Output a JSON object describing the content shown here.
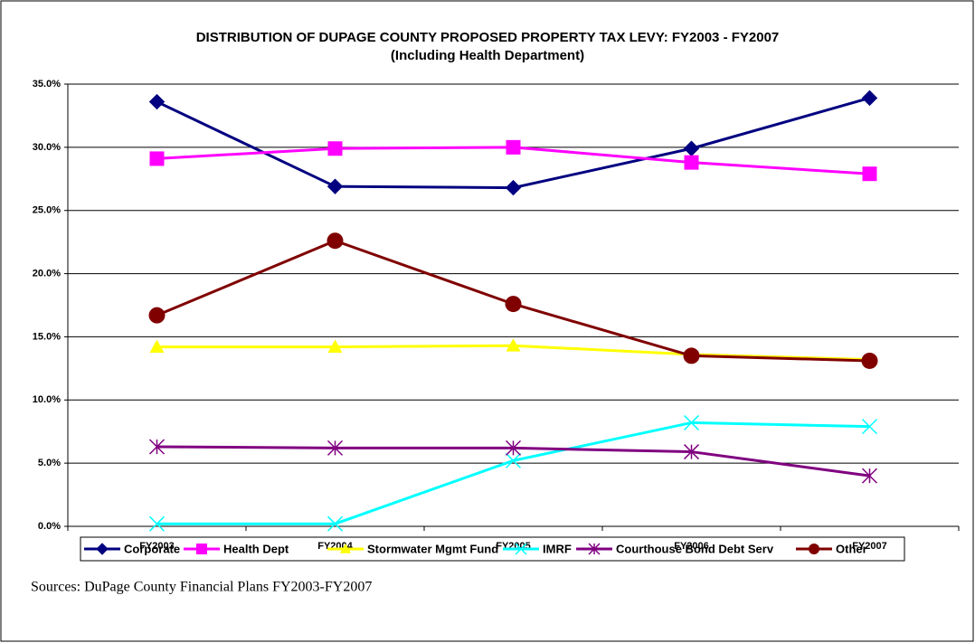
{
  "chart_data": {
    "type": "line",
    "title": "DISTRIBUTION OF DUPAGE COUNTY PROPOSED PROPERTY TAX LEVY: FY2003 - FY2007",
    "subtitle": "(Including Health Department)",
    "categories": [
      "FY2003",
      "FY2004",
      "FY2005",
      "FY2006",
      "FY2007"
    ],
    "series": [
      {
        "name": "Corporate",
        "color": "#000080",
        "marker": "diamond",
        "values": [
          33.6,
          26.9,
          26.8,
          29.9,
          33.9
        ]
      },
      {
        "name": "Health Dept",
        "color": "#ff00ff",
        "marker": "square",
        "values": [
          29.1,
          29.9,
          30.0,
          28.8,
          27.9
        ]
      },
      {
        "name": "Stormwater Mgmt Fund",
        "color": "#ffff00",
        "marker": "triangle",
        "values": [
          14.2,
          14.2,
          14.3,
          13.6,
          13.2
        ]
      },
      {
        "name": "IMRF",
        "color": "#00ffff",
        "marker": "x",
        "values": [
          0.2,
          0.2,
          5.2,
          8.2,
          7.9
        ]
      },
      {
        "name": "Courthouse Bond Debt Serv",
        "color": "#800080",
        "marker": "star",
        "values": [
          6.3,
          6.2,
          6.2,
          5.9,
          4.0
        ]
      },
      {
        "name": "Other",
        "color": "#800000",
        "marker": "circle",
        "values": [
          16.7,
          22.6,
          17.6,
          13.5,
          13.1
        ]
      }
    ],
    "ylim": [
      0,
      35
    ],
    "yticks": [
      {
        "value": 0,
        "label": "0.0%"
      },
      {
        "value": 5,
        "label": "5.0%"
      },
      {
        "value": 10,
        "label": "10.0%"
      },
      {
        "value": 15,
        "label": "15.0%"
      },
      {
        "value": 20,
        "label": "20.0%"
      },
      {
        "value": 25,
        "label": "25.0%"
      },
      {
        "value": 30,
        "label": "30.0%"
      },
      {
        "value": 35,
        "label": "35.0%"
      }
    ],
    "grid": true,
    "legend": "bottom",
    "source": "Sources: DuPage County Financial Plans FY2003-FY2007"
  }
}
